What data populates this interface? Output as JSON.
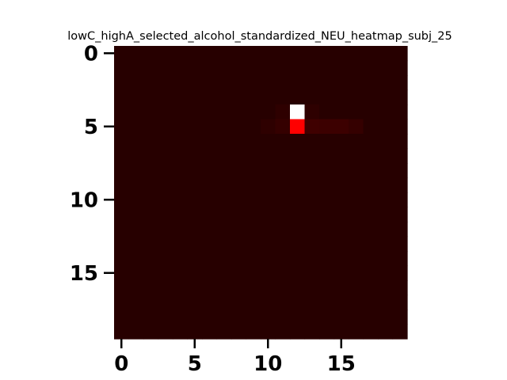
{
  "chart_data": {
    "type": "heatmap",
    "title": "lowC_highA_selected_alcohol_standardized_NEU_heatmap_subj_25",
    "xlabel": "",
    "ylabel": "",
    "rows": 20,
    "cols": 20,
    "xticks": [
      0,
      5,
      10,
      15
    ],
    "yticks": [
      0,
      5,
      10,
      15
    ],
    "x_tick_labels": [
      "0",
      "5",
      "10",
      "15"
    ],
    "y_tick_labels": [
      "0",
      "5",
      "10",
      "15"
    ],
    "colormap": "hot",
    "vmin": 0.0,
    "vmax": 1.0,
    "background_value": 0.04,
    "cells": [
      {
        "row": 4,
        "col": 12,
        "value": 1.0
      },
      {
        "row": 5,
        "col": 12,
        "value": 0.36
      },
      {
        "row": 5,
        "col": 11,
        "value": 0.06
      },
      {
        "row": 5,
        "col": 13,
        "value": 0.075
      },
      {
        "row": 5,
        "col": 14,
        "value": 0.07
      },
      {
        "row": 5,
        "col": 15,
        "value": 0.07
      },
      {
        "row": 5,
        "col": 16,
        "value": 0.06
      },
      {
        "row": 5,
        "col": 10,
        "value": 0.05
      },
      {
        "row": 4,
        "col": 11,
        "value": 0.05
      },
      {
        "row": 4,
        "col": 13,
        "value": 0.05
      }
    ],
    "grid": false,
    "legend": "none"
  }
}
